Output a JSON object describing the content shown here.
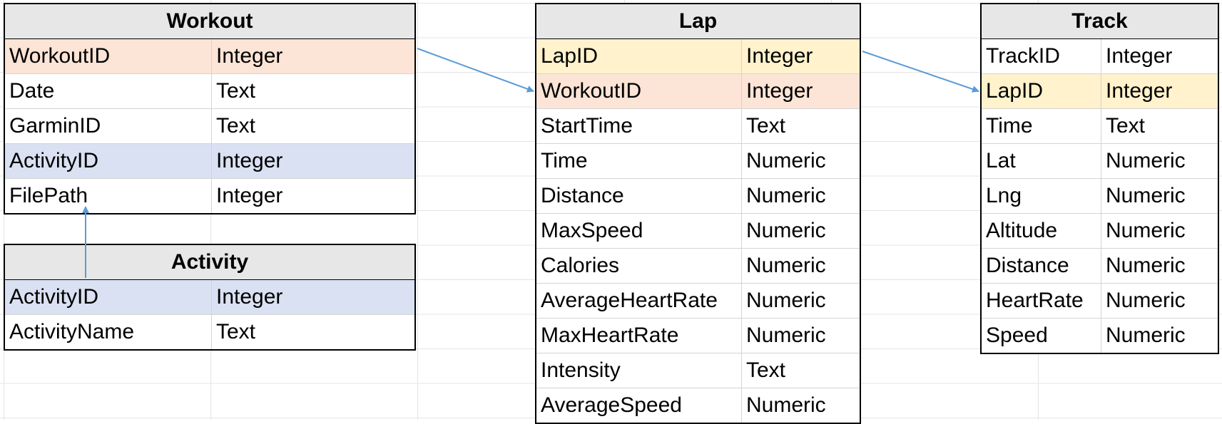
{
  "tables": {
    "workout": {
      "title": "Workout",
      "rows": [
        {
          "name": "WorkoutID",
          "type": "Integer"
        },
        {
          "name": "Date",
          "type": "Text"
        },
        {
          "name": "GarminID",
          "type": "Text"
        },
        {
          "name": "ActivityID",
          "type": "Integer"
        },
        {
          "name": "FilePath",
          "type": "Integer"
        }
      ]
    },
    "activity": {
      "title": "Activity",
      "rows": [
        {
          "name": "ActivityID",
          "type": "Integer"
        },
        {
          "name": "ActivityName",
          "type": "Text"
        }
      ]
    },
    "lap": {
      "title": "Lap",
      "rows": [
        {
          "name": "LapID",
          "type": "Integer"
        },
        {
          "name": "WorkoutID",
          "type": "Integer"
        },
        {
          "name": "StartTime",
          "type": "Text"
        },
        {
          "name": "Time",
          "type": "Numeric"
        },
        {
          "name": "Distance",
          "type": "Numeric"
        },
        {
          "name": "MaxSpeed",
          "type": "Numeric"
        },
        {
          "name": "Calories",
          "type": "Numeric"
        },
        {
          "name": "AverageHeartRate",
          "type": "Numeric"
        },
        {
          "name": "MaxHeartRate",
          "type": "Numeric"
        },
        {
          "name": "Intensity",
          "type": "Text"
        },
        {
          "name": "AverageSpeed",
          "type": "Numeric"
        }
      ]
    },
    "track": {
      "title": "Track",
      "rows": [
        {
          "name": "TrackID",
          "type": "Integer"
        },
        {
          "name": "LapID",
          "type": "Integer"
        },
        {
          "name": "Time",
          "type": "Text"
        },
        {
          "name": "Lat",
          "type": "Numeric"
        },
        {
          "name": "Lng",
          "type": "Numeric"
        },
        {
          "name": "Altitude",
          "type": "Numeric"
        },
        {
          "name": "Distance",
          "type": "Numeric"
        },
        {
          "name": "HeartRate",
          "type": "Numeric"
        },
        {
          "name": "Speed",
          "type": "Numeric"
        }
      ]
    }
  },
  "colors": {
    "workout_key": "#fce4d6",
    "lap_key": "#fff2cc",
    "activity_key": "#d9e1f2",
    "arrow": "#5b9bd5"
  }
}
